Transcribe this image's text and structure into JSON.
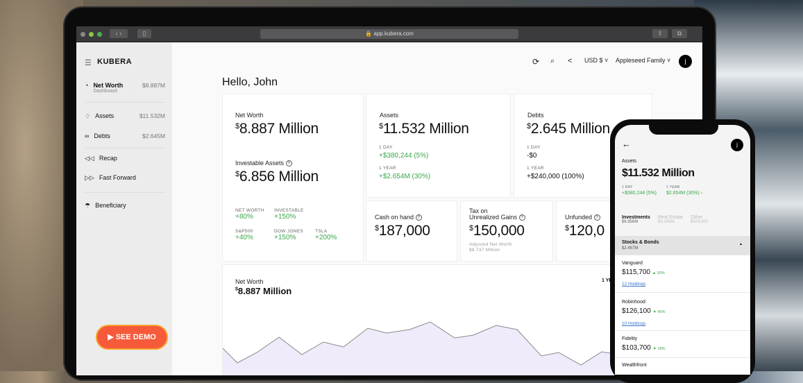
{
  "browser": {
    "url": "app.kubera.com"
  },
  "sidebar": {
    "brand": "KUBERA",
    "items": [
      {
        "label": "Net Worth",
        "sub": "Dashboard",
        "value": "$8.887M"
      },
      {
        "label": "Assets",
        "value": "$11.532M"
      },
      {
        "label": "Debts",
        "value": "$2.645M"
      },
      {
        "label": "Recap"
      },
      {
        "label": "Fast Forward"
      },
      {
        "label": "Beneficiary"
      }
    ],
    "demo": "▶ SEE DEMO"
  },
  "header": {
    "currency": "USD $",
    "portfolio": "Appleseed Family",
    "avatar": "j"
  },
  "greeting": "Hello, John",
  "networth_card": {
    "label": "Net Worth",
    "value": "8.887 Million",
    "investable_label": "Investable Assets",
    "investable_value": "6.856 Million",
    "stats": [
      {
        "label": "NET WORTH",
        "value": "+80%"
      },
      {
        "label": "INVESTABLE",
        "value": "+150%"
      },
      {
        "label": "S&P500",
        "value": "+40%"
      },
      {
        "label": "DOW JONES",
        "value": "+150%"
      },
      {
        "label": "TSLA",
        "value": "+200%"
      }
    ]
  },
  "assets_card": {
    "label": "Assets",
    "value": "11.532 Million",
    "day_label": "1 DAY",
    "day": "+$380,244 (5%)",
    "year_label": "1 YEAR",
    "year": "+$2.654M (30%)"
  },
  "debts_card": {
    "label": "Debts",
    "value": "2.645 Million",
    "day_label": "1 DAY",
    "day": "-$0",
    "year_label": "1 YEAR",
    "year": "+$240,000 (100%)"
  },
  "cash_card": {
    "label": "Cash on hand",
    "value": "187,000"
  },
  "tax_card": {
    "label1": "Tax on",
    "label2": "Unrealized Gains",
    "value": "150,000",
    "sub1": "Adjusted Net Worth",
    "sub2": "$8.737 Million"
  },
  "unfunded_card": {
    "label": "Unfunded",
    "value": "120,0"
  },
  "chart_card": {
    "label": "Net Worth",
    "value": "8.887 Million",
    "range": "1 YE"
  },
  "phone": {
    "avatar": "j",
    "title": "Assets",
    "value": "$11.532 Million",
    "day_label": "1 DAY",
    "day": "+$380,244 (5%)",
    "year_label": "1 YEAR",
    "year": "$2.654M (30%) ›",
    "tabs": [
      {
        "label": "Investments",
        "value": "$6.856M"
      },
      {
        "label": "Real Estate",
        "value": "$3.145M"
      },
      {
        "label": "Other",
        "value": "$523,000"
      }
    ],
    "section": {
      "label": "Stocks & Bonds",
      "value": "$2.467M"
    },
    "accounts": [
      {
        "name": "Vanguard",
        "value": "$115,700",
        "change": "▲ 30%",
        "holdings": "12 Holdings"
      },
      {
        "name": "Robinhood",
        "value": "$126,100",
        "change": "▼ 40%",
        "holdings": "10 Holdings"
      },
      {
        "name": "Fidelity",
        "value": "$103,700",
        "change": "▼ 18%"
      },
      {
        "name": "Wealthfront"
      }
    ]
  },
  "colors": {
    "accent": "#f65a3a",
    "positive": "#3aa84a",
    "chart_fill": "#efebfb"
  }
}
